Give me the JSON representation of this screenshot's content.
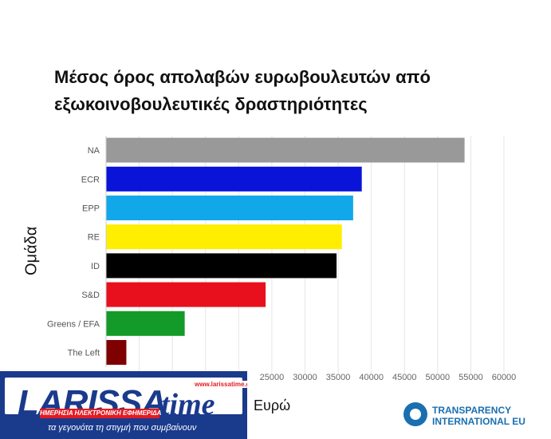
{
  "chart_data": {
    "type": "bar",
    "orientation": "horizontal",
    "title": "Μέσος όρος απολαβών ευρωβουλευτών από εξωκοινοβουλευτικές δραστηριότητες",
    "title_lines": [
      "Μέσος όρος απολαβών ευρωβουλευτών από",
      "εξωκοινοβουλευτικές δραστηριότητες"
    ],
    "ylabel": "Ομάδα",
    "xlabel": "Ευρώ",
    "categories": [
      "NA",
      "ECR",
      "EPP",
      "RE",
      "ID",
      "S&D",
      "Greens / EFA",
      "The Left"
    ],
    "values": [
      54000,
      38500,
      37200,
      35500,
      34700,
      24000,
      11800,
      3000
    ],
    "colors": [
      "#999999",
      "#0a14d8",
      "#10a8e8",
      "#ffee00",
      "#000000",
      "#e8101c",
      "#149a28",
      "#7f0000"
    ],
    "xlim": [
      0,
      60000
    ],
    "xticks": [
      "25000",
      "30000",
      "35000",
      "40000",
      "45000",
      "50000",
      "55000",
      "60000"
    ],
    "xtick_values": [
      25000,
      30000,
      35000,
      40000,
      45000,
      50000,
      55000,
      60000
    ],
    "grid": true
  },
  "logo": {
    "word": "LARISSA",
    "word2": "time",
    "url": "www.larissatime.gr",
    "strip": "ΗΜΕΡΗΣΙΑ ΗΛΕΚΤΡΟΝΙΚΗ ΕΦΗΜΕΡΙΔΑ",
    "slogan": "τα γεγονότα τη στιγμή που συμβαίνουν"
  },
  "source": {
    "line1": "TRANSPARENCY",
    "line2": "INTERNATIONAL EU"
  }
}
